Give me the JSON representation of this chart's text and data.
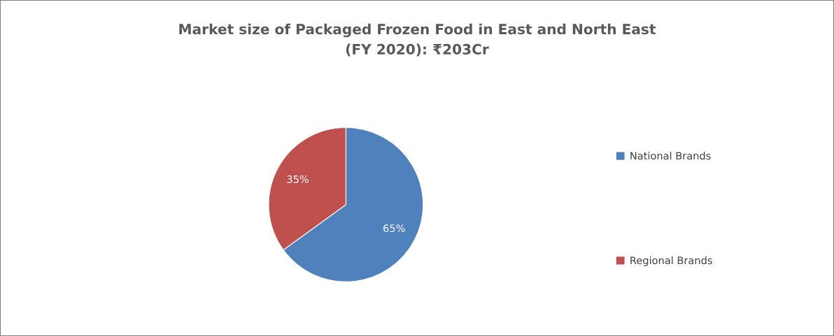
{
  "chart_data": {
    "type": "pie",
    "title": "Market size of Packaged Frozen Food in East and North East\n(FY 2020): ₹203Cr",
    "categories": [
      "National Brands",
      "Regional Brands"
    ],
    "values": [
      65,
      35
    ],
    "colors": [
      "#4f81bd",
      "#c0504d"
    ],
    "value_labels": [
      "65%",
      "35%"
    ],
    "legend": "right"
  }
}
